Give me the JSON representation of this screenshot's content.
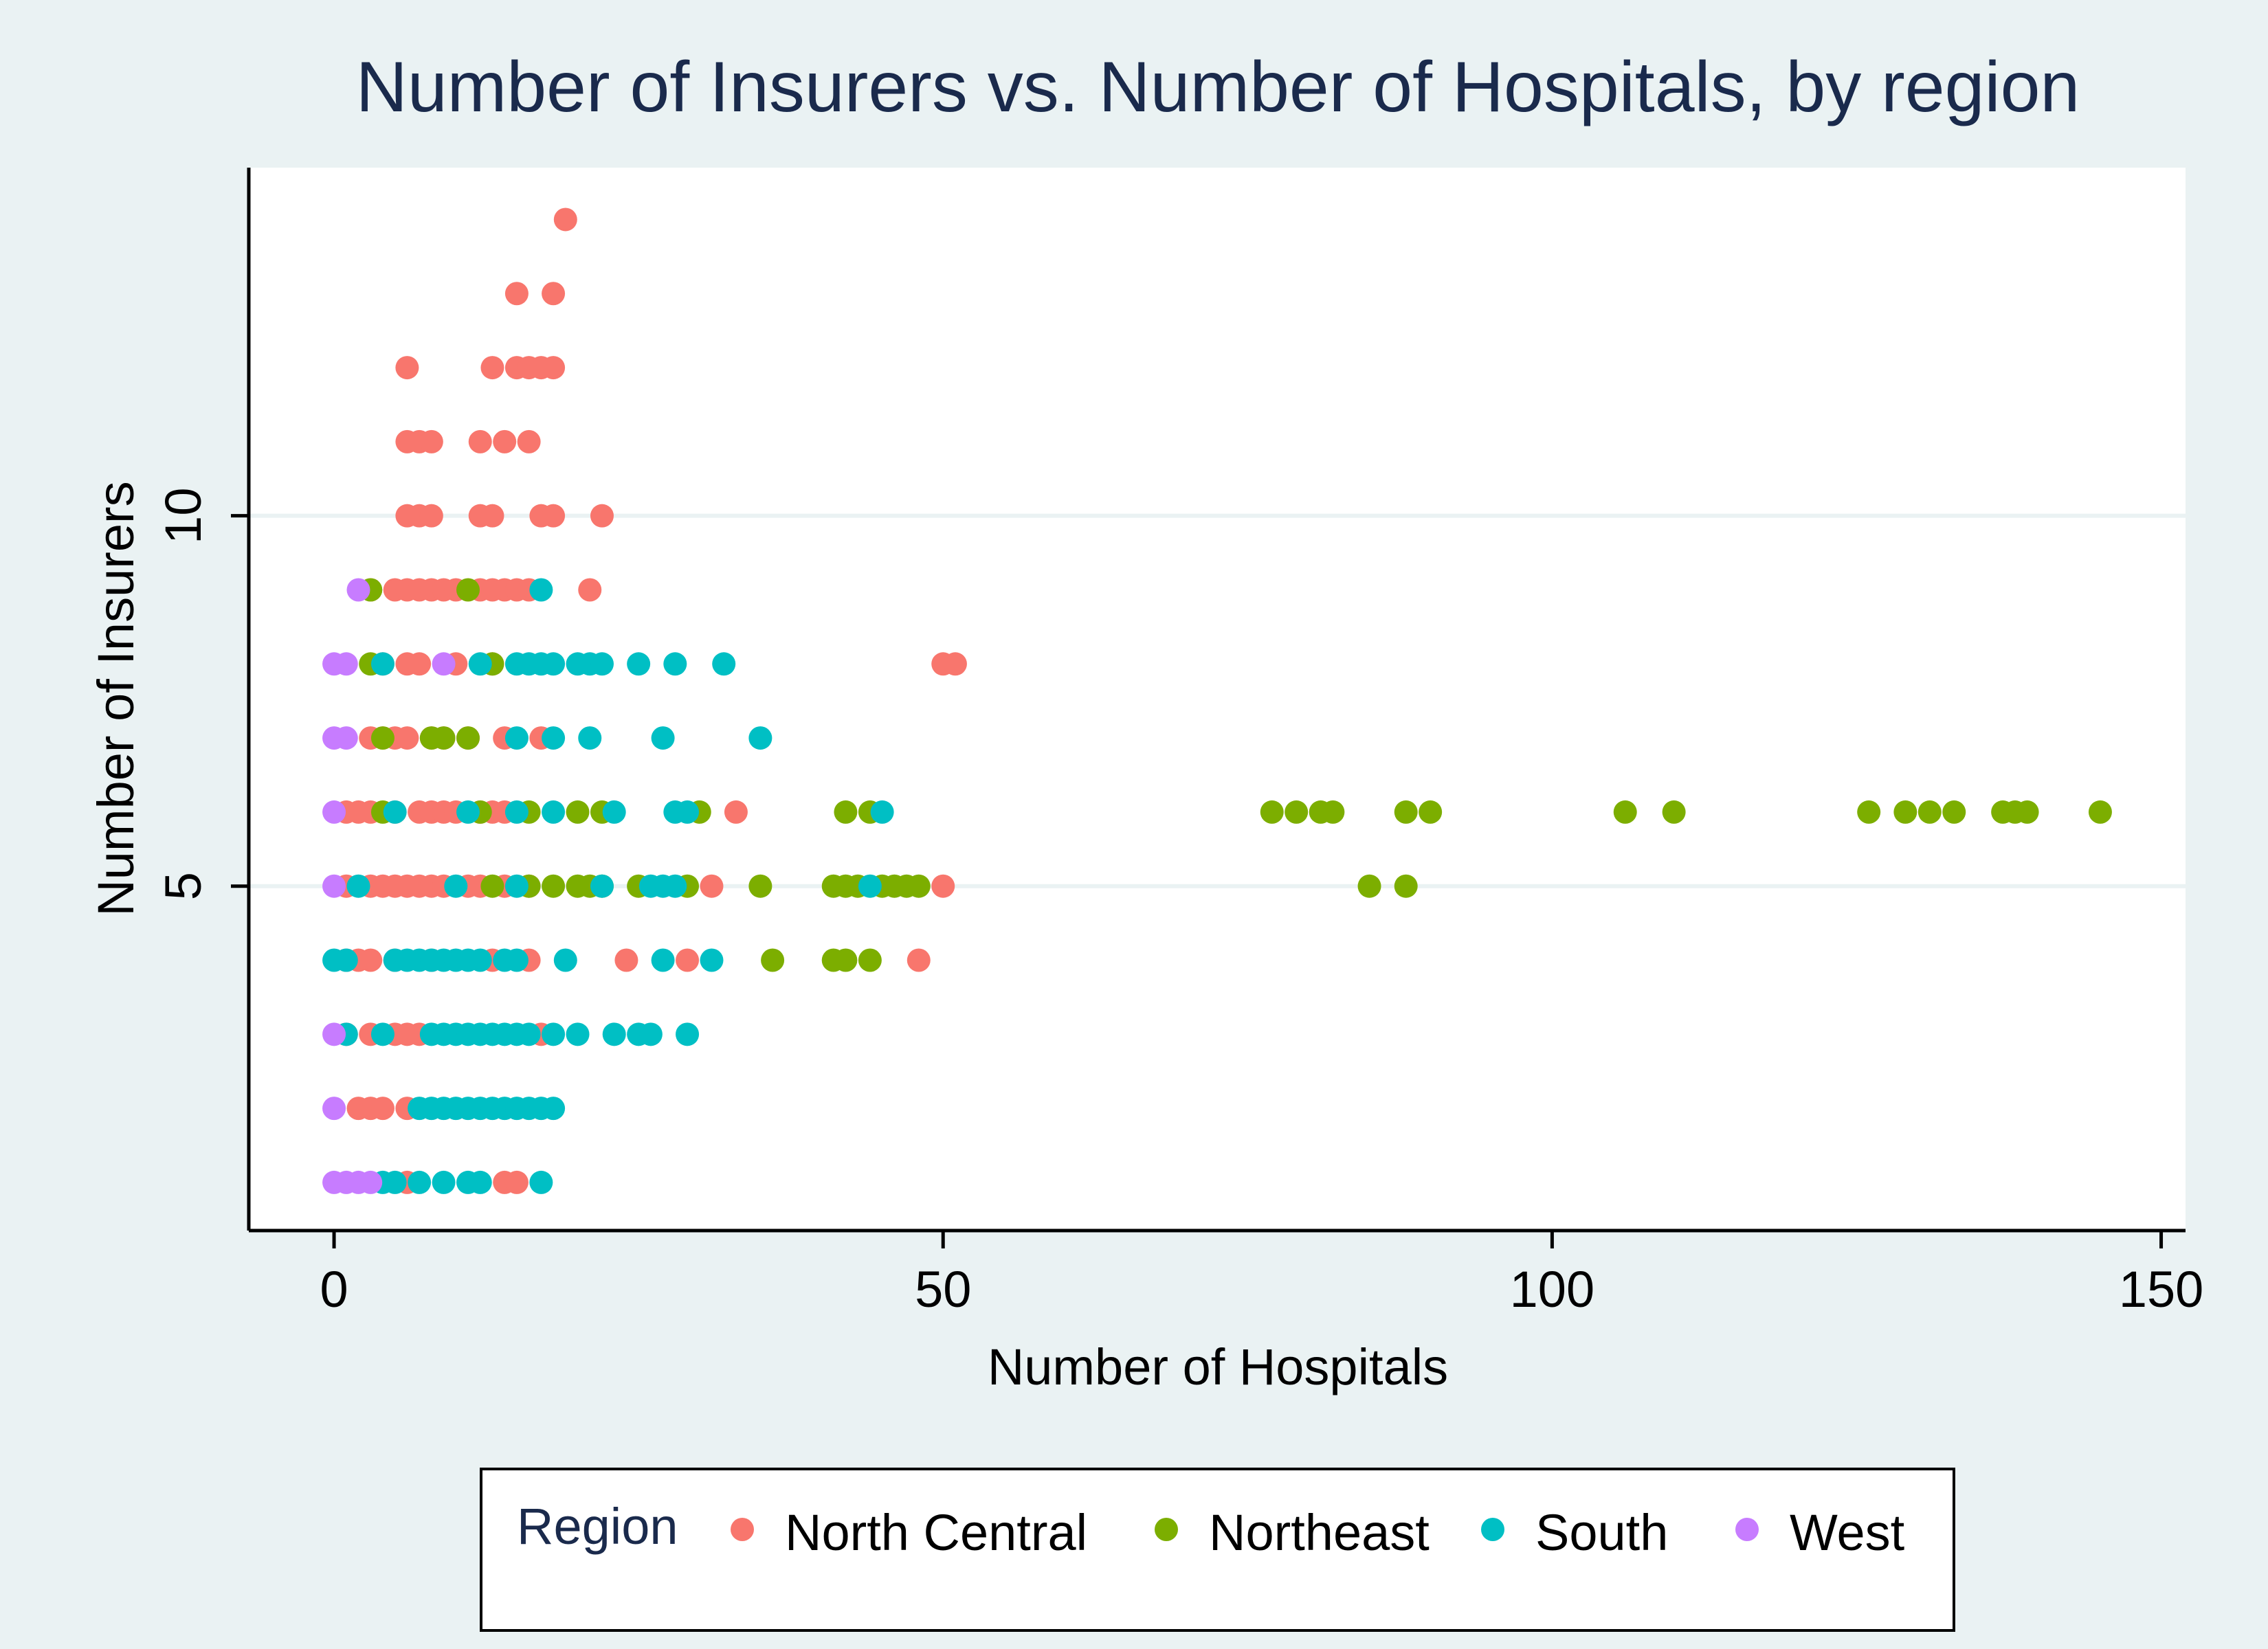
{
  "chart_data": {
    "type": "scatter",
    "title": "Number of Insurers vs. Number of Hospitals, by region",
    "xlabel": "Number of Hospitals",
    "ylabel": "Number of Insurers",
    "xlim": [
      -7,
      152
    ],
    "ylim": [
      0.35,
      14.7
    ],
    "x_ticks": [
      0,
      50,
      100,
      150
    ],
    "y_ticks": [
      5,
      10
    ],
    "grid": "horizontal at y ticks",
    "legend_placement": "bottom",
    "legend_title": "Region",
    "series": [
      {
        "name": "North Central",
        "color": "#f8766d",
        "points": [
          [
            19,
            14
          ],
          [
            15,
            13
          ],
          [
            18,
            13
          ],
          [
            6,
            12
          ],
          [
            13,
            12
          ],
          [
            15,
            12
          ],
          [
            16,
            12
          ],
          [
            17,
            12
          ],
          [
            18,
            12
          ],
          [
            6,
            11
          ],
          [
            7,
            11
          ],
          [
            8,
            11
          ],
          [
            12,
            11
          ],
          [
            14,
            11
          ],
          [
            16,
            11
          ],
          [
            6,
            10
          ],
          [
            7,
            10
          ],
          [
            8,
            10
          ],
          [
            12,
            10
          ],
          [
            13,
            10
          ],
          [
            17,
            10
          ],
          [
            18,
            10
          ],
          [
            22,
            10
          ],
          [
            3,
            9
          ],
          [
            5,
            9
          ],
          [
            6,
            9
          ],
          [
            7,
            9
          ],
          [
            8,
            9
          ],
          [
            9,
            9
          ],
          [
            10,
            9
          ],
          [
            12,
            9
          ],
          [
            13,
            9
          ],
          [
            14,
            9
          ],
          [
            15,
            9
          ],
          [
            16,
            9
          ],
          [
            21,
            9
          ],
          [
            4,
            8
          ],
          [
            6,
            8
          ],
          [
            7,
            8
          ],
          [
            10,
            8
          ],
          [
            13,
            8
          ],
          [
            50,
            8
          ],
          [
            51,
            8
          ],
          [
            3,
            7
          ],
          [
            4,
            7
          ],
          [
            5,
            7
          ],
          [
            6,
            7
          ],
          [
            8,
            7
          ],
          [
            9,
            7
          ],
          [
            11,
            7
          ],
          [
            14,
            7
          ],
          [
            17,
            7
          ],
          [
            1,
            6
          ],
          [
            2,
            6
          ],
          [
            3,
            6
          ],
          [
            5,
            6
          ],
          [
            7,
            6
          ],
          [
            8,
            6
          ],
          [
            9,
            6
          ],
          [
            10,
            6
          ],
          [
            12,
            6
          ],
          [
            13,
            6
          ],
          [
            14,
            6
          ],
          [
            33,
            6
          ],
          [
            1,
            5
          ],
          [
            3,
            5
          ],
          [
            4,
            5
          ],
          [
            5,
            5
          ],
          [
            6,
            5
          ],
          [
            7,
            5
          ],
          [
            8,
            5
          ],
          [
            9,
            5
          ],
          [
            11,
            5
          ],
          [
            12,
            5
          ],
          [
            14,
            5
          ],
          [
            16,
            5
          ],
          [
            31,
            5
          ],
          [
            50,
            5
          ],
          [
            1,
            4
          ],
          [
            2,
            4
          ],
          [
            3,
            4
          ],
          [
            5,
            4
          ],
          [
            8,
            4
          ],
          [
            13,
            4
          ],
          [
            16,
            4
          ],
          [
            24,
            4
          ],
          [
            29,
            4
          ],
          [
            48,
            4
          ],
          [
            1,
            3
          ],
          [
            3,
            3
          ],
          [
            5,
            3
          ],
          [
            6,
            3
          ],
          [
            7,
            3
          ],
          [
            17,
            3
          ],
          [
            2,
            2
          ],
          [
            3,
            2
          ],
          [
            4,
            2
          ],
          [
            6,
            2
          ],
          [
            6,
            1
          ],
          [
            14,
            1
          ],
          [
            15,
            1
          ]
        ]
      },
      {
        "name": "Northeast",
        "color": "#7cae00",
        "points": [
          [
            3,
            9
          ],
          [
            11,
            9
          ],
          [
            3,
            8
          ],
          [
            13,
            8
          ],
          [
            4,
            7
          ],
          [
            8,
            7
          ],
          [
            9,
            7
          ],
          [
            11,
            7
          ],
          [
            4,
            6
          ],
          [
            12,
            6
          ],
          [
            16,
            6
          ],
          [
            20,
            6
          ],
          [
            22,
            6
          ],
          [
            30,
            6
          ],
          [
            42,
            6
          ],
          [
            44,
            6
          ],
          [
            77,
            6
          ],
          [
            79,
            6
          ],
          [
            81,
            6
          ],
          [
            82,
            6
          ],
          [
            88,
            6
          ],
          [
            90,
            6
          ],
          [
            106,
            6
          ],
          [
            110,
            6
          ],
          [
            126,
            6
          ],
          [
            129,
            6
          ],
          [
            131,
            6
          ],
          [
            133,
            6
          ],
          [
            137,
            6
          ],
          [
            138,
            6
          ],
          [
            139,
            6
          ],
          [
            145,
            6
          ],
          [
            13,
            5
          ],
          [
            16,
            5
          ],
          [
            18,
            5
          ],
          [
            20,
            5
          ],
          [
            21,
            5
          ],
          [
            22,
            5
          ],
          [
            25,
            5
          ],
          [
            29,
            5
          ],
          [
            35,
            5
          ],
          [
            41,
            5
          ],
          [
            42,
            5
          ],
          [
            43,
            5
          ],
          [
            45,
            5
          ],
          [
            46,
            5
          ],
          [
            47,
            5
          ],
          [
            48,
            5
          ],
          [
            85,
            5
          ],
          [
            88,
            5
          ],
          [
            36,
            4
          ],
          [
            41,
            4
          ],
          [
            42,
            4
          ],
          [
            44,
            4
          ]
        ]
      },
      {
        "name": "South",
        "color": "#00bfc4",
        "points": [
          [
            17,
            9
          ],
          [
            4,
            8
          ],
          [
            12,
            8
          ],
          [
            15,
            8
          ],
          [
            16,
            8
          ],
          [
            17,
            8
          ],
          [
            18,
            8
          ],
          [
            20,
            8
          ],
          [
            21,
            8
          ],
          [
            22,
            8
          ],
          [
            25,
            8
          ],
          [
            28,
            8
          ],
          [
            32,
            8
          ],
          [
            15,
            7
          ],
          [
            18,
            7
          ],
          [
            21,
            7
          ],
          [
            27,
            7
          ],
          [
            35,
            7
          ],
          [
            5,
            6
          ],
          [
            11,
            6
          ],
          [
            15,
            6
          ],
          [
            18,
            6
          ],
          [
            23,
            6
          ],
          [
            28,
            6
          ],
          [
            29,
            6
          ],
          [
            45,
            6
          ],
          [
            2,
            5
          ],
          [
            10,
            5
          ],
          [
            15,
            5
          ],
          [
            22,
            5
          ],
          [
            26,
            5
          ],
          [
            27,
            5
          ],
          [
            28,
            5
          ],
          [
            44,
            5
          ],
          [
            0,
            4
          ],
          [
            1,
            4
          ],
          [
            5,
            4
          ],
          [
            6,
            4
          ],
          [
            7,
            4
          ],
          [
            8,
            4
          ],
          [
            9,
            4
          ],
          [
            10,
            4
          ],
          [
            11,
            4
          ],
          [
            12,
            4
          ],
          [
            14,
            4
          ],
          [
            15,
            4
          ],
          [
            19,
            4
          ],
          [
            27,
            4
          ],
          [
            31,
            4
          ],
          [
            1,
            3
          ],
          [
            4,
            3
          ],
          [
            8,
            3
          ],
          [
            9,
            3
          ],
          [
            10,
            3
          ],
          [
            11,
            3
          ],
          [
            12,
            3
          ],
          [
            13,
            3
          ],
          [
            14,
            3
          ],
          [
            15,
            3
          ],
          [
            16,
            3
          ],
          [
            18,
            3
          ],
          [
            20,
            3
          ],
          [
            23,
            3
          ],
          [
            25,
            3
          ],
          [
            26,
            3
          ],
          [
            29,
            3
          ],
          [
            7,
            2
          ],
          [
            8,
            2
          ],
          [
            9,
            2
          ],
          [
            10,
            2
          ],
          [
            11,
            2
          ],
          [
            12,
            2
          ],
          [
            13,
            2
          ],
          [
            14,
            2
          ],
          [
            15,
            2
          ],
          [
            16,
            2
          ],
          [
            17,
            2
          ],
          [
            18,
            2
          ],
          [
            4,
            1
          ],
          [
            5,
            1
          ],
          [
            7,
            1
          ],
          [
            9,
            1
          ],
          [
            11,
            1
          ],
          [
            12,
            1
          ],
          [
            17,
            1
          ]
        ]
      },
      {
        "name": "West",
        "color": "#c77cff",
        "points": [
          [
            2,
            9
          ],
          [
            0,
            8
          ],
          [
            1,
            8
          ],
          [
            9,
            8
          ],
          [
            0,
            7
          ],
          [
            1,
            7
          ],
          [
            0,
            6
          ],
          [
            0,
            5
          ],
          [
            0,
            3
          ],
          [
            0,
            2
          ],
          [
            0,
            1
          ],
          [
            1,
            1
          ],
          [
            2,
            1
          ],
          [
            3,
            1
          ]
        ]
      }
    ]
  }
}
